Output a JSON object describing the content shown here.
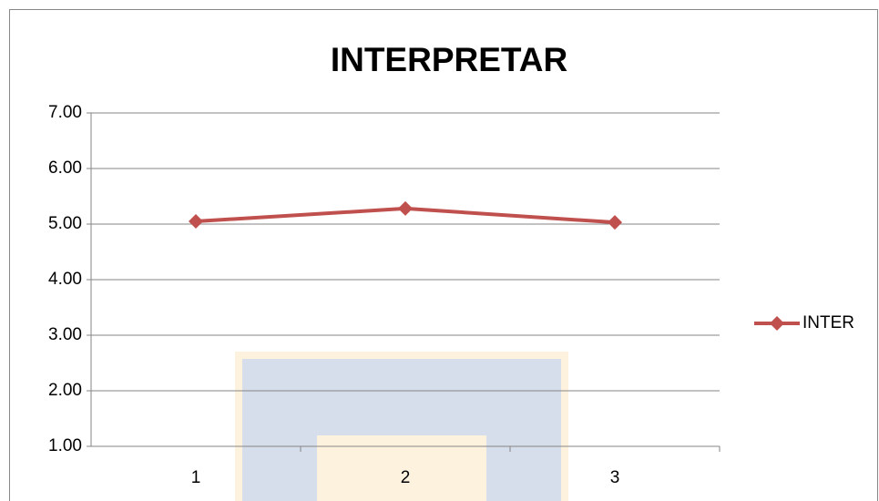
{
  "chart_data": {
    "type": "line",
    "title": "INTERPRETAR",
    "categories": [
      "1",
      "2",
      "3"
    ],
    "series": [
      {
        "name": "INTER",
        "color": "#c0504d",
        "values": [
          5.05,
          5.28,
          5.03
        ]
      }
    ],
    "ylim": [
      1,
      7
    ],
    "yticks": [
      {
        "value": 1,
        "label": "1.00"
      },
      {
        "value": 2,
        "label": "2.00"
      },
      {
        "value": 3,
        "label": "3.00"
      },
      {
        "value": 4,
        "label": "4.00"
      },
      {
        "value": 5,
        "label": "5.00"
      },
      {
        "value": 6,
        "label": "6.00"
      },
      {
        "value": 7,
        "label": "7.00"
      }
    ],
    "grid": true,
    "legend": "right"
  }
}
